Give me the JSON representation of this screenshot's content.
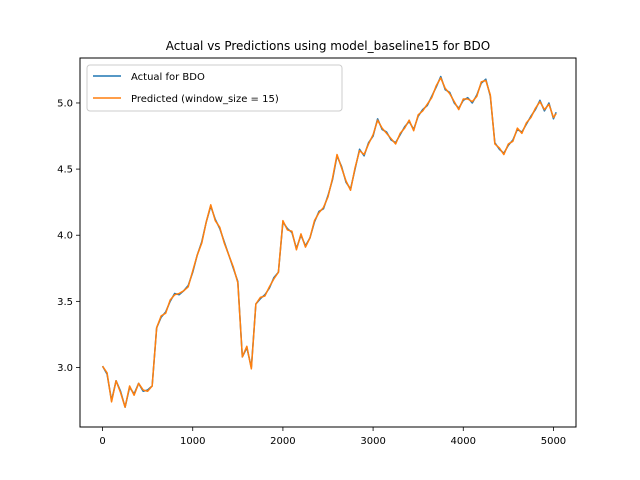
{
  "chart_data": {
    "type": "line",
    "title": "Actual vs Predictions using model_baseline15 for BDO",
    "xlabel": "",
    "ylabel": "",
    "xlim": [
      -250,
      5250
    ],
    "ylim": [
      2.55,
      5.34
    ],
    "xticks": [
      0,
      1000,
      2000,
      3000,
      4000,
      5000
    ],
    "xtick_labels": [
      "0",
      "1000",
      "2000",
      "3000",
      "4000",
      "5000"
    ],
    "yticks": [
      3.0,
      3.5,
      4.0,
      4.5,
      5.0
    ],
    "ytick_labels": [
      "3.0",
      "3.5",
      "4.0",
      "4.5",
      "5.0"
    ],
    "grid": false,
    "legend_position": "top-left",
    "series": [
      {
        "name": "Actual for BDO",
        "color": "#1f77b4",
        "x": [
          0,
          50,
          100,
          150,
          200,
          250,
          300,
          350,
          400,
          450,
          500,
          550,
          600,
          650,
          700,
          750,
          800,
          850,
          900,
          950,
          1000,
          1050,
          1100,
          1150,
          1200,
          1250,
          1300,
          1350,
          1400,
          1450,
          1500,
          1550,
          1600,
          1650,
          1700,
          1750,
          1800,
          1850,
          1900,
          1950,
          2000,
          2050,
          2100,
          2150,
          2200,
          2250,
          2300,
          2350,
          2400,
          2450,
          2500,
          2550,
          2600,
          2650,
          2700,
          2750,
          2800,
          2850,
          2900,
          2950,
          3000,
          3050,
          3100,
          3150,
          3200,
          3250,
          3300,
          3350,
          3400,
          3450,
          3500,
          3550,
          3600,
          3650,
          3700,
          3750,
          3800,
          3850,
          3900,
          3950,
          4000,
          4050,
          4100,
          4150,
          4200,
          4250,
          4300,
          4350,
          4400,
          4450,
          4500,
          4550,
          4600,
          4650,
          4700,
          4750,
          4800,
          4850,
          4900,
          4950,
          5000,
          5030
        ],
        "y": [
          3.01,
          2.95,
          2.75,
          2.9,
          2.82,
          2.7,
          2.85,
          2.8,
          2.88,
          2.82,
          2.83,
          2.86,
          3.3,
          3.38,
          3.42,
          3.5,
          3.56,
          3.55,
          3.58,
          3.62,
          3.72,
          3.85,
          3.95,
          4.1,
          4.22,
          4.12,
          4.05,
          3.95,
          3.85,
          3.75,
          3.65,
          3.08,
          3.15,
          3.0,
          3.48,
          3.52,
          3.55,
          3.6,
          3.68,
          3.72,
          4.1,
          4.05,
          4.02,
          3.9,
          4.0,
          3.92,
          3.98,
          4.1,
          4.18,
          4.2,
          4.3,
          4.42,
          4.6,
          4.52,
          4.4,
          4.35,
          4.5,
          4.65,
          4.6,
          4.7,
          4.75,
          4.88,
          4.8,
          4.78,
          4.72,
          4.7,
          4.76,
          4.82,
          4.86,
          4.8,
          4.9,
          4.95,
          4.98,
          5.05,
          5.12,
          5.2,
          5.1,
          5.08,
          5.0,
          4.96,
          5.02,
          5.04,
          5.0,
          5.06,
          5.15,
          5.18,
          5.05,
          4.7,
          4.65,
          4.62,
          4.68,
          4.72,
          4.8,
          4.78,
          4.84,
          4.9,
          4.95,
          5.02,
          4.94,
          5.0,
          4.88,
          4.93
        ],
        "width": 1.5
      },
      {
        "name": "Predicted (window_size = 15)",
        "color": "#ff7f0e",
        "x": [
          0,
          50,
          100,
          150,
          200,
          250,
          300,
          350,
          400,
          450,
          500,
          550,
          600,
          650,
          700,
          750,
          800,
          850,
          900,
          950,
          1000,
          1050,
          1100,
          1150,
          1200,
          1250,
          1300,
          1350,
          1400,
          1450,
          1500,
          1550,
          1600,
          1650,
          1700,
          1750,
          1800,
          1850,
          1900,
          1950,
          2000,
          2050,
          2100,
          2150,
          2200,
          2250,
          2300,
          2350,
          2400,
          2450,
          2500,
          2550,
          2600,
          2650,
          2700,
          2750,
          2800,
          2850,
          2900,
          2950,
          3000,
          3050,
          3100,
          3150,
          3200,
          3250,
          3300,
          3350,
          3400,
          3450,
          3500,
          3550,
          3600,
          3650,
          3700,
          3750,
          3800,
          3850,
          3900,
          3950,
          4000,
          4050,
          4100,
          4150,
          4200,
          4250,
          4300,
          4350,
          4400,
          4450,
          4500,
          4550,
          4600,
          4650,
          4700,
          4750,
          4800,
          4850,
          4900,
          4950,
          5000,
          5030
        ],
        "y": [
          3.01,
          2.96,
          2.74,
          2.9,
          2.81,
          2.7,
          2.86,
          2.79,
          2.88,
          2.83,
          2.82,
          2.86,
          3.3,
          3.39,
          3.41,
          3.51,
          3.55,
          3.56,
          3.58,
          3.61,
          3.73,
          3.85,
          3.94,
          4.1,
          4.23,
          4.11,
          4.06,
          3.94,
          3.85,
          3.76,
          3.64,
          3.08,
          3.16,
          2.99,
          3.48,
          3.53,
          3.54,
          3.61,
          3.67,
          3.72,
          4.11,
          4.04,
          4.03,
          3.89,
          4.01,
          3.91,
          3.98,
          4.11,
          4.17,
          4.21,
          4.29,
          4.43,
          4.61,
          4.51,
          4.41,
          4.34,
          4.51,
          4.64,
          4.61,
          4.69,
          4.76,
          4.87,
          4.81,
          4.77,
          4.73,
          4.69,
          4.77,
          4.81,
          4.87,
          4.79,
          4.91,
          4.94,
          4.99,
          5.04,
          5.13,
          5.19,
          5.11,
          5.07,
          5.01,
          4.95,
          5.03,
          5.03,
          5.01,
          5.05,
          5.16,
          5.17,
          5.06,
          4.69,
          4.66,
          4.61,
          4.69,
          4.71,
          4.81,
          4.77,
          4.85,
          4.89,
          4.96,
          5.01,
          4.95,
          4.99,
          4.89,
          4.92
        ],
        "width": 1.5
      }
    ]
  }
}
